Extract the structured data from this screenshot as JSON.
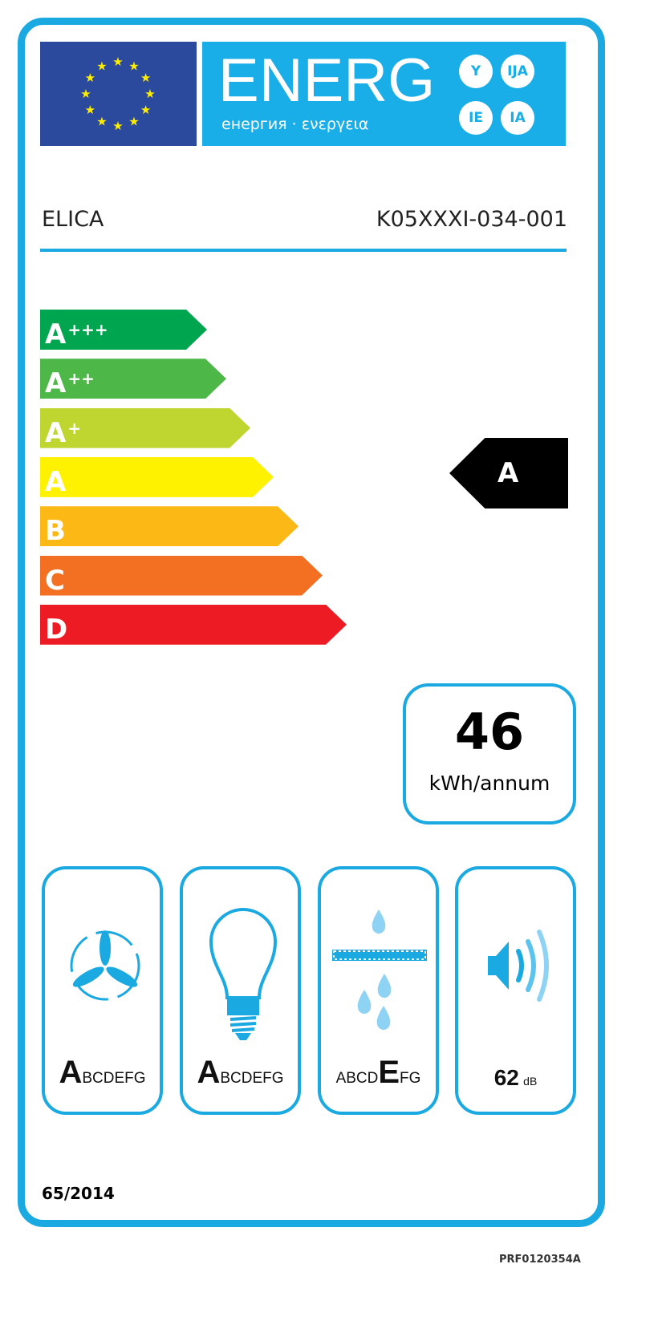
{
  "header": {
    "energ": "ENERG",
    "subtitle": "енергия · ενεργεια",
    "suffixes": [
      "Y",
      "IJA",
      "IE",
      "IA"
    ]
  },
  "supplier": "ELICA",
  "model": "K05XXXI-034-001",
  "scale": [
    {
      "label": "A",
      "plus": "+++",
      "color": "#00a54f"
    },
    {
      "label": "A",
      "plus": "++",
      "color": "#4db848"
    },
    {
      "label": "A",
      "plus": "+",
      "color": "#bed62f"
    },
    {
      "label": "A",
      "plus": "",
      "color": "#fff200"
    },
    {
      "label": "B",
      "plus": "",
      "color": "#fcb814"
    },
    {
      "label": "C",
      "plus": "",
      "color": "#f36f21"
    },
    {
      "label": "D",
      "plus": "",
      "color": "#ed1c24"
    }
  ],
  "rating": "A",
  "consumption": {
    "value": "46",
    "unit": "kWh/annum"
  },
  "classes": {
    "fluid_dynamic": {
      "selected": "A",
      "rest": "BCDEFG",
      "icon": "fan-icon"
    },
    "lighting": {
      "selected": "A",
      "rest": "BCDEFG",
      "icon": "lightbulb-icon"
    },
    "grease_filtering": {
      "before": "ABCD",
      "selected": "E",
      "after": "FG",
      "icon": "grease-filter-icon"
    },
    "noise": {
      "value": "62",
      "unit": "dB",
      "icon": "speaker-icon"
    }
  },
  "regulation": "65/2014",
  "code": "PRF0120354A",
  "colors": {
    "frame": "#1ba9e1",
    "flag": "#2b4a9e",
    "banner": "#19aee8"
  }
}
